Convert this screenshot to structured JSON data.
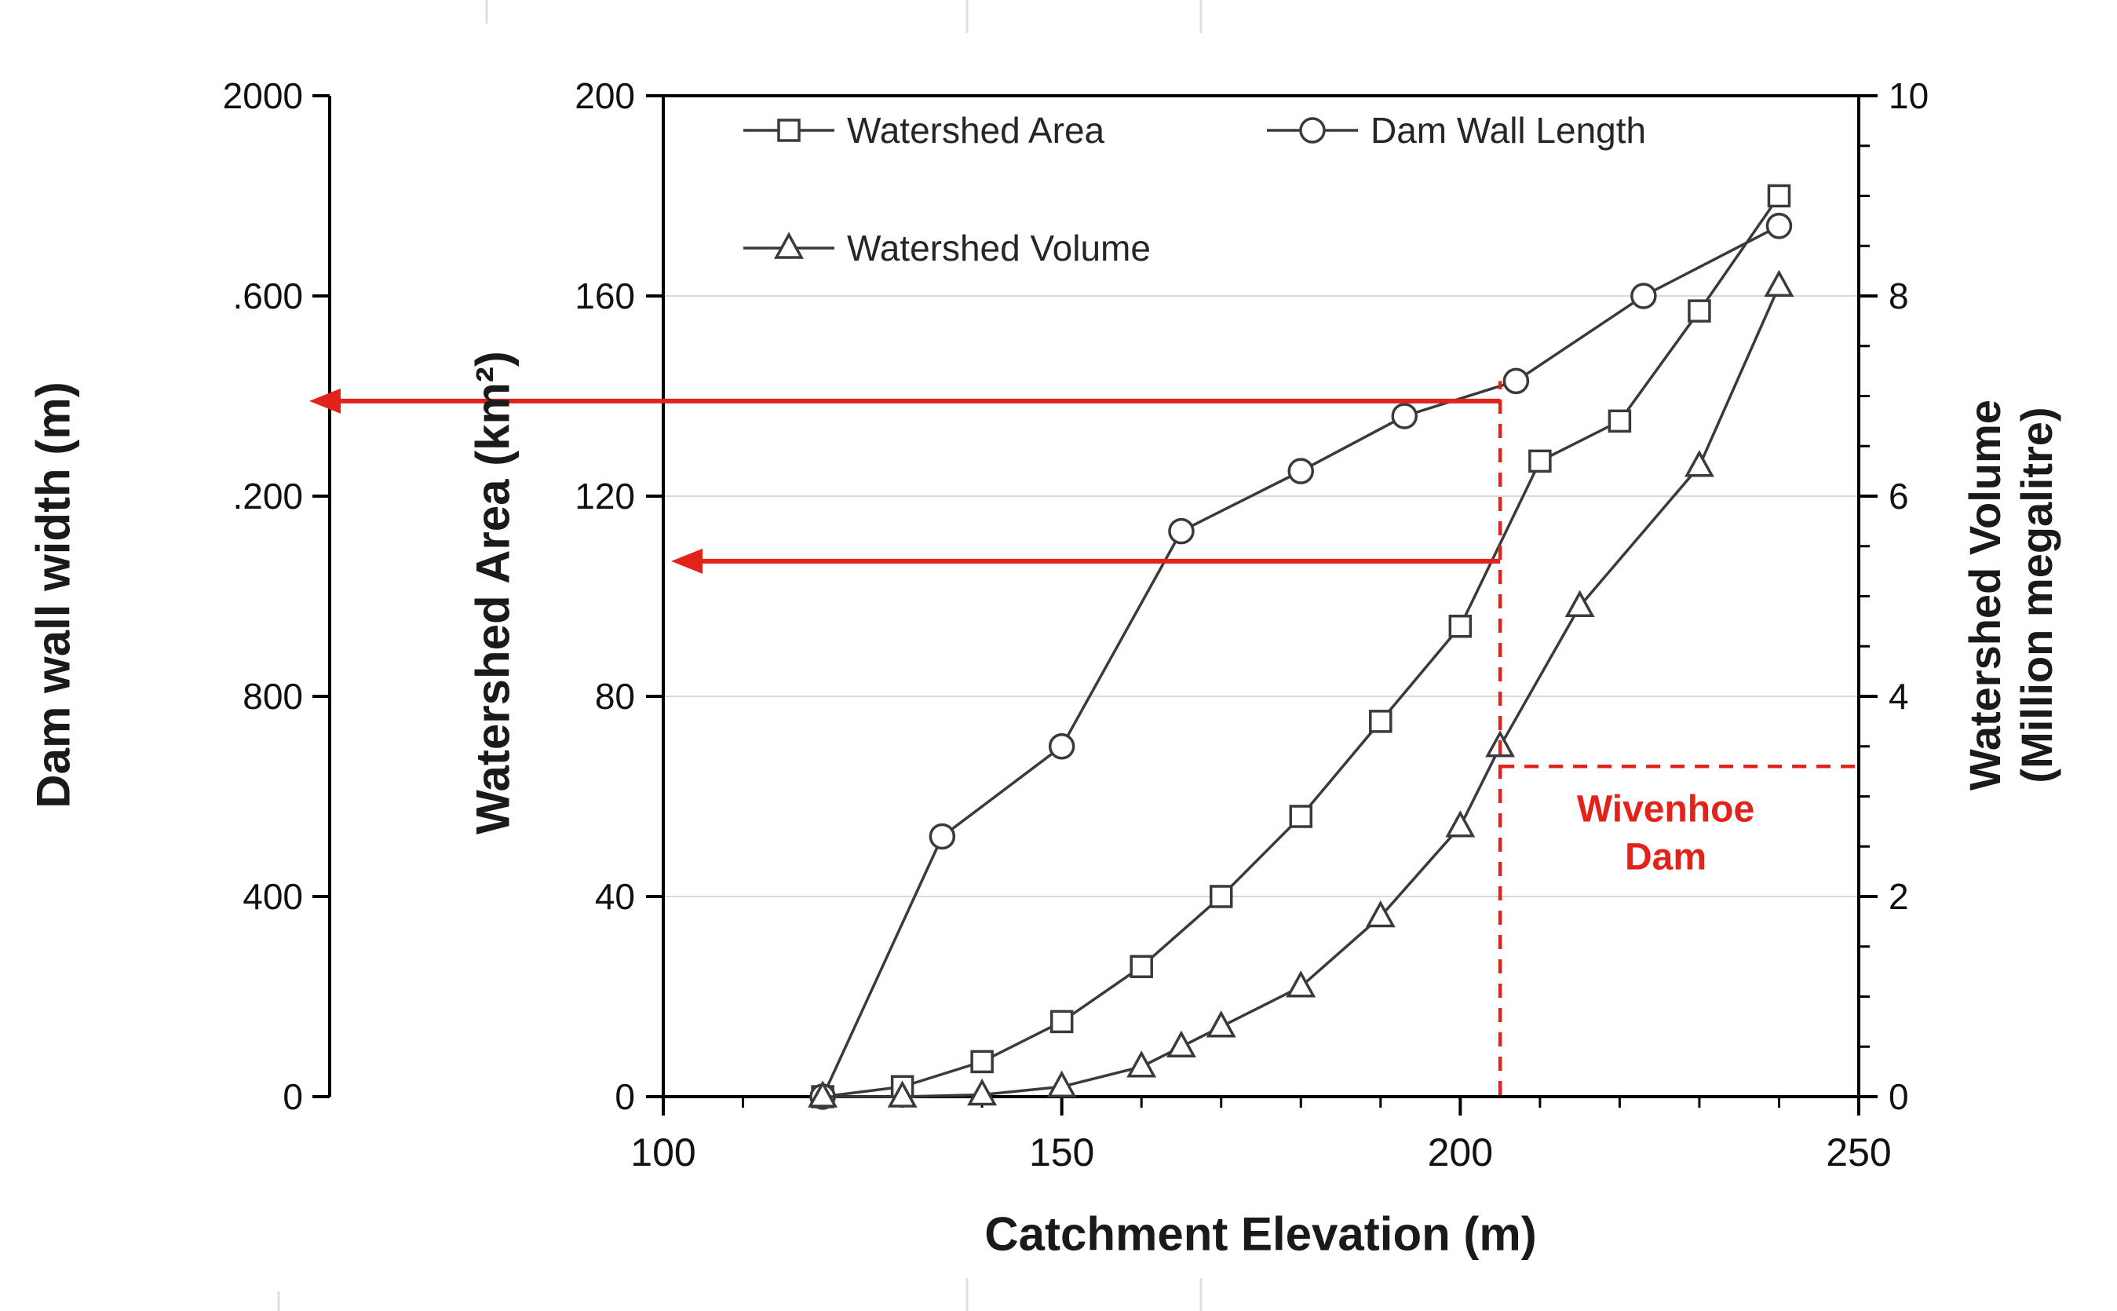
{
  "chart_data": {
    "type": "line",
    "title": "",
    "xlabel": "Catchment Elevation (m)",
    "xlim": [
      100,
      250
    ],
    "x_major_ticks": [
      100,
      150,
      200,
      250
    ],
    "x_minor_tick_step": 10,
    "grid": "horizontal",
    "legend_position": "top-inside",
    "line_color": "#3a3a3a",
    "axes": {
      "dam_wall": {
        "title": "Dam wall width (m)",
        "lim": [
          0,
          2000
        ],
        "tick_values": [
          0,
          400,
          800,
          1200,
          1600,
          2000
        ],
        "tick_labels": [
          "0",
          "400",
          "800",
          ".200",
          ".600",
          "2000"
        ]
      },
      "area": {
        "title": "Watershed Area (km²)",
        "lim": [
          0,
          200
        ],
        "tick_values": [
          0,
          40,
          80,
          120,
          160,
          200
        ],
        "tick_labels": [
          "0",
          "40",
          "80",
          "120",
          "160",
          "200"
        ]
      },
      "volume": {
        "title_line1": "Watershed Volume",
        "title_line2": "(Million megalitre)",
        "lim": [
          0,
          10
        ],
        "tick_values": [
          0,
          2,
          4,
          6,
          8,
          10
        ],
        "tick_labels": [
          "0",
          "2",
          "4",
          "6",
          "8",
          "10"
        ],
        "minor_tick_step": 0.5
      }
    },
    "series": [
      {
        "name": "Watershed Area",
        "marker": "square",
        "axis": "area",
        "x": [
          120,
          130,
          140,
          150,
          160,
          170,
          180,
          190,
          200,
          210,
          220,
          230,
          240
        ],
        "y": [
          0,
          2,
          7,
          15,
          26,
          40,
          56,
          75,
          94,
          127,
          135,
          157,
          180
        ]
      },
      {
        "name": "Dam Wall Length",
        "marker": "circle",
        "axis": "dam_wall",
        "x": [
          120,
          135,
          150,
          165,
          180,
          193,
          207,
          223,
          240
        ],
        "y": [
          0,
          520,
          700,
          1130,
          1250,
          1360,
          1430,
          1600,
          1740
        ]
      },
      {
        "name": "Watershed Volume",
        "marker": "triangle",
        "axis": "volume",
        "x": [
          120,
          130,
          140,
          150,
          160,
          165,
          170,
          180,
          190,
          200,
          205,
          215,
          230,
          240
        ],
        "y": [
          0,
          0,
          0.02,
          0.1,
          0.3,
          0.5,
          0.7,
          1.1,
          1.8,
          2.7,
          3.5,
          4.9,
          6.3,
          8.1
        ]
      }
    ],
    "annotations": {
      "red_color": "#e2231a",
      "wivenhoe_line1": "Wivenhoe",
      "wivenhoe_line2": "Dam",
      "dashed_vertical_x": 205,
      "dashed_vertical_top_dam_wall": 1430,
      "arrow_to_dam_axis_value": 1390,
      "arrow_to_area_axis_value": 107,
      "dashed_horizontal_volume": 3.3
    }
  }
}
